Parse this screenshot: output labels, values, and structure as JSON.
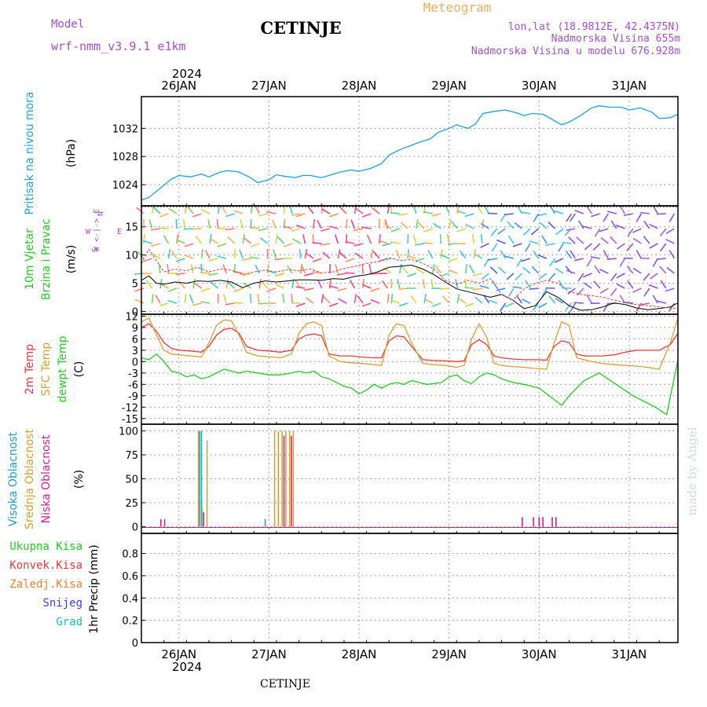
{
  "header": {
    "model_label": "Model",
    "model_name": "wrf-nmm_v3.9.1 e1km",
    "station": "CETINJE",
    "product": "Meteogram",
    "lonlat": "lon,lat (18.9812E, 42.4375N)",
    "elevation": "Nadmorska Visina 655m",
    "model_elevation": "Nadmorska Visina u modelu 676.928m"
  },
  "footer_station": "CETINJE",
  "watermark": "made by Angel",
  "colors": {
    "pressure": "#1ea0e6",
    "t2m": "#e83a3a",
    "sfc": "#d8a030",
    "dewpt": "#22cc22",
    "high_cloud": "#1ea0c8",
    "mid_cloud": "#d8a030",
    "low_cloud": "#d0208a",
    "wind_purple": "#8a2be2",
    "wind_green": "#22cc22",
    "total_precip": "#22cc22",
    "conv_precip": "#e83a3a",
    "frozen_precip": "#f08030",
    "snow": "#4040e0",
    "hail": "#20c0b0"
  },
  "chart_data": [
    {
      "type": "line",
      "panel": "pressure",
      "ylabel": [
        "Pritisak na nivou mora",
        "(hPa)"
      ],
      "yticks": [
        1024,
        1028,
        1032
      ],
      "ylim": [
        1021,
        1036.5
      ],
      "x_start_day": "2024-01-25 14:00",
      "series": [
        {
          "color": "pressure",
          "x_hours": [
            0,
            2,
            5,
            8,
            10,
            13,
            16,
            18,
            21,
            23,
            26,
            29,
            31,
            34,
            36,
            38,
            41,
            43,
            45,
            48,
            50,
            53,
            56,
            58,
            61,
            64,
            66,
            69,
            72,
            74,
            77,
            79,
            82,
            84,
            87,
            89,
            91,
            94,
            97,
            100,
            102,
            104,
            107,
            110,
            112,
            114,
            117,
            120,
            122,
            125,
            128,
            130,
            133,
            136,
            138,
            141,
            143
          ],
          "values": [
            1021.8,
            1022.2,
            1023.5,
            1024.8,
            1025.3,
            1025.1,
            1025.5,
            1025.1,
            1025.8,
            1026.0,
            1025.8,
            1025.0,
            1024.3,
            1024.7,
            1025.4,
            1025.2,
            1025.0,
            1025.3,
            1025.3,
            1025.0,
            1025.3,
            1025.8,
            1026.1,
            1025.9,
            1026.3,
            1027.0,
            1028.2,
            1029.0,
            1029.6,
            1030.0,
            1030.5,
            1031.4,
            1032.0,
            1032.5,
            1032.0,
            1032.6,
            1034.1,
            1034.4,
            1034.6,
            1034.2,
            1033.8,
            1034.1,
            1034.0,
            1033.1,
            1032.5,
            1032.9,
            1033.8,
            1034.9,
            1035.2,
            1035.0,
            1035.0,
            1034.6,
            1034.9,
            1034.3,
            1033.4,
            1033.5,
            1034.0
          ]
        }
      ]
    },
    {
      "type": "line",
      "panel": "wind",
      "ylabel": [
        "10m Vjetar",
        "Brzina i Pravac",
        "(m/s)"
      ],
      "yticks": [
        0,
        5,
        10,
        15
      ],
      "ylim": [
        -0.5,
        18.7
      ],
      "direction_legend": [
        "N",
        "W <-|-> E",
        "S"
      ],
      "series": [
        {
          "name": "speed",
          "color": "#000000",
          "x_hours": [
            0,
            2,
            4,
            6,
            9,
            12,
            15,
            18,
            21,
            24,
            27,
            30,
            33,
            36,
            39,
            42,
            45,
            48,
            51,
            54,
            57,
            60,
            63,
            66,
            69,
            72,
            75,
            78,
            81,
            84,
            87,
            90,
            93,
            96,
            99,
            102,
            105,
            108,
            111,
            114,
            117,
            120,
            123,
            126,
            129,
            132,
            135,
            138,
            141,
            143
          ],
          "values": [
            5.5,
            6.3,
            5.0,
            4.8,
            5.2,
            5.0,
            5.4,
            5.3,
            5.5,
            5.2,
            4.2,
            5.0,
            5.4,
            5.2,
            5.4,
            5.6,
            5.6,
            5.5,
            5.8,
            5.7,
            6.2,
            6.5,
            7.0,
            7.8,
            8.0,
            8.2,
            7.5,
            6.5,
            5.2,
            4.0,
            3.5,
            3.0,
            2.5,
            3.0,
            2.0,
            0.5,
            1.0,
            3.5,
            2.5,
            1.0,
            0.2,
            0.3,
            0.8,
            1.5,
            1.2,
            0.6,
            0.3,
            0.5,
            0.8,
            1.5
          ]
        },
        {
          "name": "gust",
          "color": "#e83a3a",
          "x_hours": [
            0,
            2,
            4,
            6,
            9,
            12,
            15,
            18,
            21,
            24,
            27,
            30,
            33,
            36,
            39,
            42,
            45,
            48,
            51,
            54,
            57,
            60,
            63,
            66,
            69,
            72,
            75,
            78,
            81,
            84,
            87,
            90,
            93,
            96,
            99,
            102,
            105,
            108,
            111,
            114,
            117,
            120,
            123,
            126,
            129,
            132,
            135,
            138,
            141,
            143
          ],
          "values": [
            8.5,
            11.0,
            9.0,
            7.0,
            7.5,
            7.2,
            7.8,
            7.0,
            7.5,
            7.3,
            6.5,
            7.0,
            7.3,
            7.0,
            7.4,
            7.2,
            7.5,
            6.8,
            7.0,
            7.6,
            8.0,
            8.5,
            8.8,
            9.5,
            9.0,
            9.2,
            8.5,
            7.5,
            5.5,
            4.8,
            5.5,
            5.0,
            5.8,
            3.0,
            2.0,
            4.0,
            5.0,
            5.5,
            5.0,
            3.5,
            3.0,
            2.8,
            2.5,
            2.0,
            1.5,
            1.2,
            1.0,
            0.8,
            0.6,
            0.5
          ]
        }
      ]
    },
    {
      "type": "line",
      "panel": "temperature",
      "ylabel": [
        "2m Temp",
        "SFC Temp",
        "dewpt Temp",
        "(C)"
      ],
      "yticks": [
        -15,
        -12,
        -9,
        -6,
        -3,
        0,
        3,
        6,
        9,
        12
      ],
      "ylim": [
        -16.5,
        12.5
      ],
      "series": [
        {
          "name": "2m Temp",
          "color": "t2m",
          "x_hours": [
            0,
            2,
            4,
            6,
            8,
            10,
            13,
            16,
            18,
            20,
            22,
            24,
            26,
            28,
            31,
            34,
            37,
            40,
            42,
            44,
            46,
            48,
            50,
            53,
            56,
            59,
            62,
            64,
            66,
            68,
            70,
            72,
            75,
            78,
            81,
            84,
            86,
            88,
            90,
            92,
            94,
            96,
            99,
            102,
            105,
            108,
            110,
            112,
            114,
            116,
            118,
            120,
            123,
            126,
            129,
            132,
            135,
            138,
            141,
            143
          ],
          "values": [
            9.0,
            10.0,
            8.0,
            5.0,
            3.5,
            3.0,
            2.8,
            2.5,
            4.0,
            7.0,
            8.5,
            8.8,
            7.5,
            4.0,
            3.0,
            2.8,
            2.5,
            3.0,
            6.0,
            7.0,
            7.3,
            6.8,
            2.0,
            1.5,
            1.5,
            1.2,
            1.0,
            1.0,
            5.5,
            6.8,
            6.5,
            4.0,
            0.5,
            0.3,
            0.2,
            0.0,
            0.2,
            4.5,
            5.8,
            4.5,
            1.5,
            1.0,
            0.7,
            0.5,
            0.5,
            0.4,
            4.0,
            5.5,
            5.0,
            2.0,
            1.5,
            1.5,
            1.5,
            1.8,
            2.5,
            3.0,
            3.0,
            3.0,
            4.5,
            7.5
          ]
        },
        {
          "name": "SFC Temp",
          "color": "sfc",
          "x_hours": [
            0,
            2,
            4,
            6,
            8,
            10,
            13,
            16,
            18,
            20,
            22,
            24,
            26,
            28,
            31,
            34,
            37,
            40,
            42,
            44,
            46,
            48,
            50,
            53,
            56,
            59,
            62,
            64,
            66,
            68,
            70,
            72,
            75,
            78,
            81,
            84,
            86,
            88,
            90,
            92,
            94,
            96,
            99,
            102,
            105,
            108,
            110,
            112,
            114,
            116,
            118,
            120,
            123,
            126,
            129,
            132,
            135,
            138,
            141,
            143
          ],
          "values": [
            10.5,
            11.5,
            7.0,
            3.0,
            2.0,
            1.8,
            1.5,
            1.2,
            5.0,
            9.5,
            11.0,
            10.8,
            7.0,
            2.5,
            1.5,
            1.3,
            1.0,
            2.0,
            7.5,
            10.0,
            10.5,
            9.5,
            1.5,
            0.0,
            -0.3,
            -0.5,
            -0.8,
            -1.0,
            7.0,
            10.0,
            9.5,
            5.0,
            -0.5,
            -0.8,
            -1.0,
            -1.5,
            -1.0,
            6.0,
            10.0,
            6.5,
            -0.5,
            -1.0,
            -1.3,
            -1.5,
            -1.8,
            -2.0,
            5.0,
            10.5,
            9.5,
            1.0,
            0.5,
            0.0,
            -0.5,
            -0.8,
            -1.0,
            -1.2,
            -1.5,
            -2.0,
            5.0,
            11.5
          ]
        },
        {
          "name": "dewpt Temp",
          "color": "dewpt",
          "x_hours": [
            0,
            2,
            4,
            6,
            8,
            10,
            12,
            14,
            16,
            18,
            20,
            22,
            24,
            26,
            28,
            31,
            34,
            37,
            40,
            42,
            44,
            46,
            48,
            50,
            52,
            54,
            56,
            58,
            60,
            62,
            64,
            66,
            68,
            70,
            72,
            74,
            76,
            78,
            80,
            82,
            84,
            86,
            88,
            90,
            92,
            94,
            96,
            99,
            102,
            104,
            106,
            108,
            110,
            112,
            114,
            116,
            118,
            120,
            122,
            125,
            128,
            131,
            134,
            137,
            140,
            143
          ],
          "values": [
            1.0,
            0.5,
            2.0,
            0.0,
            -2.5,
            -3.0,
            -4.0,
            -3.5,
            -4.5,
            -4.0,
            -3.0,
            -2.0,
            -2.5,
            -3.0,
            -2.5,
            -3.0,
            -3.5,
            -3.5,
            -3.0,
            -2.5,
            -3.0,
            -2.5,
            -4.0,
            -4.5,
            -5.5,
            -6.5,
            -7.0,
            -8.5,
            -7.5,
            -6.0,
            -7.0,
            -6.0,
            -5.5,
            -6.0,
            -5.0,
            -5.5,
            -6.0,
            -5.8,
            -5.5,
            -4.0,
            -3.5,
            -5.0,
            -5.8,
            -4.0,
            -3.0,
            -3.5,
            -4.5,
            -5.5,
            -6.0,
            -6.5,
            -7.0,
            -8.5,
            -10.0,
            -11.5,
            -9.0,
            -7.0,
            -5.0,
            -4.0,
            -3.0,
            -5.0,
            -7.0,
            -9.0,
            -10.5,
            -12.0,
            -14.0,
            0.5
          ]
        }
      ]
    },
    {
      "type": "bar",
      "panel": "cloud",
      "ylabel": [
        "Visoka Oblacnost",
        "Srednja Oblacnost",
        "Niska Oblacnost",
        "(%)"
      ],
      "yticks": [
        0,
        25,
        50,
        75,
        100
      ],
      "ylim": [
        -7,
        107
      ],
      "series": [
        {
          "name": "Visoka Oblacnost",
          "color": "high_cloud",
          "x_hours": [
            15.5,
            16,
            33
          ],
          "values": [
            100,
            100,
            8
          ]
        },
        {
          "name": "Srednja Oblacnost",
          "color": "mid_cloud",
          "x_hours": [
            15.2,
            16.2,
            17.5,
            35.5,
            36.5,
            37.5,
            38.5,
            39.5,
            40.5
          ],
          "values": [
            100,
            22,
            90,
            100,
            100,
            100,
            100,
            100,
            100
          ]
        },
        {
          "name": "Niska Oblacnost",
          "color": "low_cloud",
          "x_hours": [
            5.2,
            6.2,
            16.6,
            38,
            40,
            101.5,
            104.5,
            106,
            107,
            109.5,
            110.5
          ],
          "values": [
            8,
            8,
            15,
            95,
            95,
            10,
            10,
            10,
            10,
            10,
            10
          ]
        }
      ]
    },
    {
      "type": "bar",
      "panel": "precip",
      "ylabel": "1hr Precip (mm)",
      "yticks": [
        0,
        0.2,
        0.4,
        0.6,
        0.8
      ],
      "ylim": [
        0,
        0.98
      ],
      "legend": [
        {
          "label": "Ukupna Kisa",
          "color": "total_precip"
        },
        {
          "label": "Konvek.Kisa",
          "color": "conv_precip"
        },
        {
          "label": "Zaledj.Kisa",
          "color": "frozen_precip"
        },
        {
          "label": "Snijeg",
          "color": "snow"
        },
        {
          "label": "Grad",
          "color": "hail"
        }
      ],
      "series": []
    }
  ],
  "x_axis": {
    "start": "2024-01-25 14:00",
    "end": "2024-01-31 13:00",
    "day_labels": [
      "26JAN",
      "27JAN",
      "28JAN",
      "29JAN",
      "30JAN",
      "31JAN"
    ],
    "day_hours": [
      10,
      34,
      58,
      82,
      106,
      130
    ],
    "year_label": "2024"
  }
}
